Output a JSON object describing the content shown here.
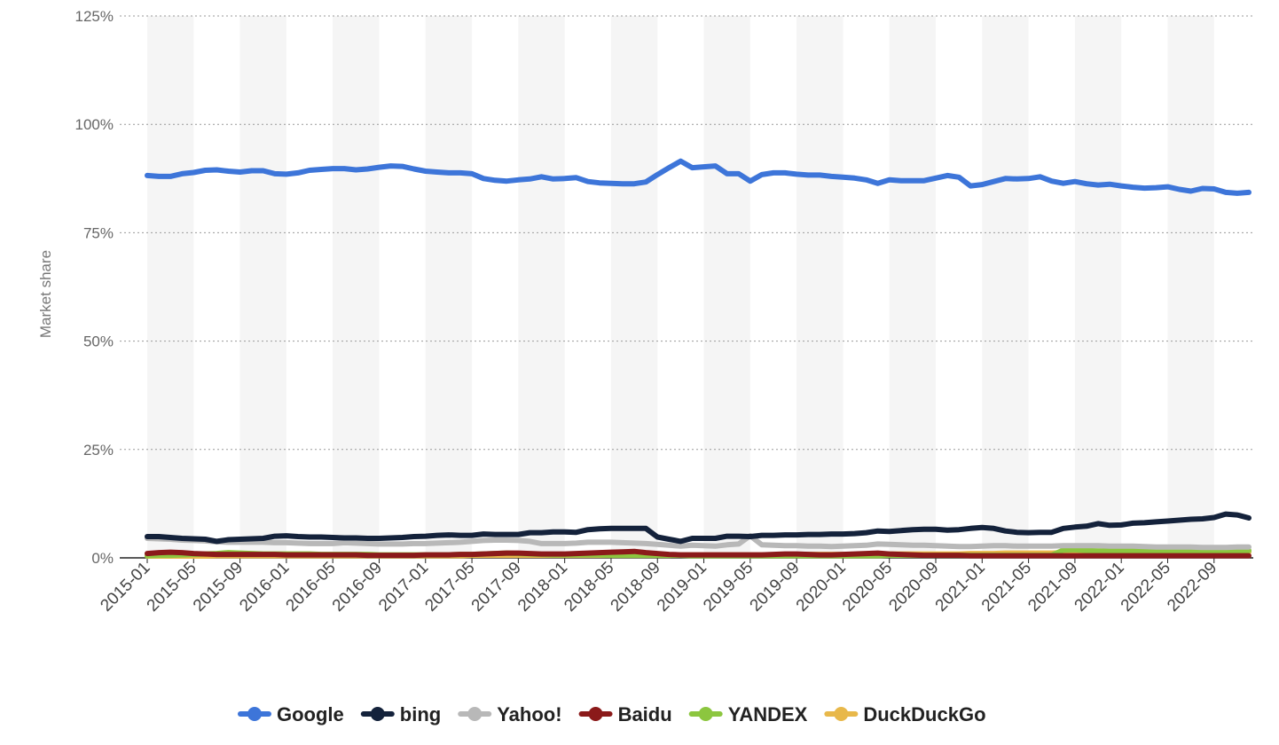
{
  "chart_data": {
    "type": "line",
    "title": "",
    "xlabel": "",
    "ylabel": "Market share",
    "ylim": [
      0,
      125
    ],
    "y_ticks": [
      "0%",
      "25%",
      "50%",
      "75%",
      "100%",
      "125%"
    ],
    "x_tick_labels": [
      "2015-01",
      "2015-05",
      "2015-09",
      "2016-01",
      "2016-05",
      "2016-09",
      "2017-01",
      "2017-05",
      "2017-09",
      "2018-01",
      "2018-05",
      "2018-09",
      "2019-01",
      "2019-05",
      "2019-09",
      "2020-01",
      "2020-05",
      "2020-09",
      "2021-01",
      "2021-05",
      "2021-09",
      "2022-01",
      "2022-05",
      "2022-09"
    ],
    "x_start": "2015-01",
    "x_end": "2022-12",
    "grid": true,
    "legend_position": "bottom",
    "series": [
      {
        "name": "Google",
        "color": "#3d75d9",
        "values": [
          88.2,
          88.0,
          88.0,
          88.6,
          88.9,
          89.4,
          89.5,
          89.2,
          89.0,
          89.3,
          89.3,
          88.6,
          88.5,
          88.8,
          89.4,
          89.6,
          89.8,
          89.8,
          89.5,
          89.7,
          90.1,
          90.4,
          90.3,
          89.7,
          89.2,
          89.0,
          88.8,
          88.8,
          88.6,
          87.5,
          87.1,
          86.9,
          87.2,
          87.4,
          87.9,
          87.4,
          87.5,
          87.7,
          86.8,
          86.5,
          86.4,
          86.3,
          86.3,
          86.7,
          88.4,
          90.0,
          91.5,
          90.0,
          90.2,
          90.4,
          88.6,
          88.6,
          86.9,
          88.4,
          88.8,
          88.8,
          88.5,
          88.3,
          88.3,
          88.0,
          87.8,
          87.6,
          87.2,
          86.4,
          87.2,
          87.0,
          87.0,
          87.0,
          87.6,
          88.2,
          87.8,
          85.8,
          86.1,
          86.8,
          87.5,
          87.4,
          87.5,
          87.9,
          86.9,
          86.4,
          86.8,
          86.3,
          86.0,
          86.2,
          85.8,
          85.5,
          85.3,
          85.4,
          85.6,
          85.0,
          84.6,
          85.2,
          85.1,
          84.3,
          84.1,
          84.3
        ]
      },
      {
        "name": "bing",
        "color": "#14223b",
        "values": [
          4.9,
          4.9,
          4.7,
          4.5,
          4.4,
          4.3,
          3.8,
          4.2,
          4.3,
          4.4,
          4.5,
          5.0,
          5.1,
          4.9,
          4.8,
          4.8,
          4.7,
          4.6,
          4.6,
          4.5,
          4.5,
          4.6,
          4.7,
          4.9,
          5.0,
          5.2,
          5.3,
          5.2,
          5.2,
          5.5,
          5.4,
          5.4,
          5.4,
          5.8,
          5.8,
          6.0,
          6.0,
          5.9,
          6.5,
          6.7,
          6.8,
          6.8,
          6.8,
          6.8,
          4.8,
          4.3,
          3.8,
          4.5,
          4.5,
          4.5,
          5.0,
          5.0,
          4.9,
          5.2,
          5.2,
          5.3,
          5.3,
          5.4,
          5.4,
          5.5,
          5.5,
          5.6,
          5.8,
          6.2,
          6.1,
          6.3,
          6.5,
          6.6,
          6.6,
          6.4,
          6.5,
          6.8,
          7.0,
          6.8,
          6.2,
          5.9,
          5.8,
          5.9,
          5.9,
          6.8,
          7.1,
          7.3,
          7.9,
          7.5,
          7.6,
          8.0,
          8.1,
          8.3,
          8.5,
          8.7,
          8.9,
          9.0,
          9.3,
          10.1,
          9.9,
          9.2
        ]
      },
      {
        "name": "Yahoo!",
        "color": "#b8b8b8",
        "values": [
          4.5,
          4.4,
          4.3,
          4.1,
          4.0,
          3.9,
          3.7,
          3.6,
          3.6,
          3.6,
          3.6,
          3.5,
          3.5,
          3.4,
          3.3,
          3.3,
          3.3,
          3.5,
          3.4,
          3.3,
          3.2,
          3.2,
          3.2,
          3.3,
          3.3,
          3.4,
          3.5,
          3.6,
          3.8,
          4.0,
          4.1,
          4.1,
          4.0,
          3.8,
          3.3,
          3.3,
          3.3,
          3.4,
          3.6,
          3.6,
          3.6,
          3.5,
          3.4,
          3.3,
          3.1,
          2.9,
          2.7,
          2.9,
          2.8,
          2.7,
          3.0,
          3.2,
          5.1,
          3.0,
          2.9,
          2.8,
          2.8,
          2.7,
          2.7,
          2.6,
          2.7,
          2.8,
          2.9,
          3.2,
          3.1,
          3.0,
          2.9,
          2.9,
          2.8,
          2.7,
          2.6,
          2.6,
          2.7,
          2.8,
          2.8,
          2.7,
          2.7,
          2.7,
          2.7,
          2.8,
          2.8,
          2.8,
          2.8,
          2.7,
          2.7,
          2.7,
          2.6,
          2.5,
          2.5,
          2.5,
          2.5,
          2.4,
          2.4,
          2.4,
          2.5,
          2.5
        ]
      },
      {
        "name": "Baidu",
        "color": "#8b1a1a",
        "values": [
          1.0,
          1.2,
          1.3,
          1.2,
          1.0,
          0.9,
          0.8,
          0.8,
          0.8,
          0.8,
          0.8,
          0.8,
          0.7,
          0.7,
          0.7,
          0.7,
          0.7,
          0.7,
          0.7,
          0.6,
          0.6,
          0.6,
          0.6,
          0.6,
          0.7,
          0.7,
          0.7,
          0.8,
          0.8,
          0.9,
          1.0,
          1.1,
          1.1,
          1.0,
          0.9,
          0.9,
          0.9,
          1.0,
          1.1,
          1.2,
          1.3,
          1.4,
          1.5,
          1.2,
          1.0,
          0.8,
          0.7,
          0.7,
          0.7,
          0.7,
          0.7,
          0.7,
          0.7,
          0.7,
          0.8,
          0.9,
          0.9,
          0.8,
          0.7,
          0.7,
          0.8,
          0.9,
          1.0,
          1.1,
          0.9,
          0.8,
          0.7,
          0.6,
          0.6,
          0.6,
          0.6,
          0.5,
          0.5,
          0.5,
          0.5,
          0.5,
          0.5,
          0.5,
          0.5,
          0.5,
          0.5,
          0.5,
          0.5,
          0.5,
          0.5,
          0.5,
          0.5,
          0.5,
          0.5,
          0.5,
          0.5,
          0.5,
          0.5,
          0.5,
          0.5,
          0.5
        ]
      },
      {
        "name": "YANDEX",
        "color": "#8cc63f",
        "values": [
          0.5,
          0.6,
          0.6,
          0.7,
          0.8,
          0.9,
          1.0,
          1.2,
          1.1,
          1.0,
          0.9,
          0.9,
          0.9,
          0.9,
          0.9,
          0.8,
          0.8,
          0.8,
          0.8,
          0.8,
          0.7,
          0.7,
          0.7,
          0.7,
          0.7,
          0.7,
          0.7,
          0.8,
          0.8,
          0.9,
          1.0,
          1.1,
          1.0,
          0.9,
          0.8,
          0.7,
          0.7,
          0.7,
          0.7,
          0.7,
          0.6,
          0.6,
          0.6,
          0.6,
          0.6,
          0.6,
          0.6,
          0.5,
          0.5,
          0.5,
          0.5,
          0.5,
          0.5,
          0.5,
          0.5,
          0.5,
          0.5,
          0.5,
          0.5,
          0.5,
          0.5,
          0.5,
          0.5,
          0.5,
          0.6,
          0.6,
          0.6,
          0.6,
          0.6,
          0.6,
          0.6,
          0.6,
          0.6,
          0.6,
          0.6,
          0.6,
          0.6,
          0.6,
          0.6,
          1.8,
          1.9,
          1.7,
          1.6,
          1.6,
          1.7,
          1.6,
          1.6,
          1.6,
          1.6,
          1.6,
          1.6,
          1.6,
          1.5,
          1.5,
          1.6,
          1.7
        ]
      },
      {
        "name": "DuckDuckGo",
        "color": "#e8b84a",
        "values": [
          0.4,
          0.4,
          0.4,
          0.4,
          0.4,
          0.4,
          0.5,
          0.5,
          0.5,
          0.5,
          0.5,
          0.5,
          0.5,
          0.5,
          0.5,
          0.5,
          0.5,
          0.5,
          0.5,
          0.5,
          0.5,
          0.5,
          0.5,
          0.5,
          0.5,
          0.5,
          0.5,
          0.5,
          0.6,
          0.6,
          0.6,
          0.6,
          0.6,
          0.6,
          0.6,
          0.6,
          0.6,
          0.6,
          0.6,
          0.6,
          0.6,
          0.6,
          0.6,
          0.6,
          0.6,
          0.6,
          0.7,
          0.7,
          0.7,
          0.7,
          0.7,
          0.7,
          0.7,
          0.7,
          0.7,
          0.7,
          0.7,
          0.8,
          0.8,
          0.8,
          0.8,
          0.8,
          0.8,
          0.8,
          0.9,
          0.9,
          0.9,
          0.9,
          0.9,
          0.9,
          0.9,
          1.0,
          1.0,
          1.0,
          1.1,
          1.1,
          1.1,
          1.1,
          1.1,
          1.2,
          1.2,
          1.2,
          1.2,
          1.2,
          1.2,
          1.3,
          1.3,
          1.3,
          1.3,
          1.3,
          1.3,
          1.3,
          1.3,
          1.3,
          1.4,
          1.4
        ]
      }
    ]
  }
}
